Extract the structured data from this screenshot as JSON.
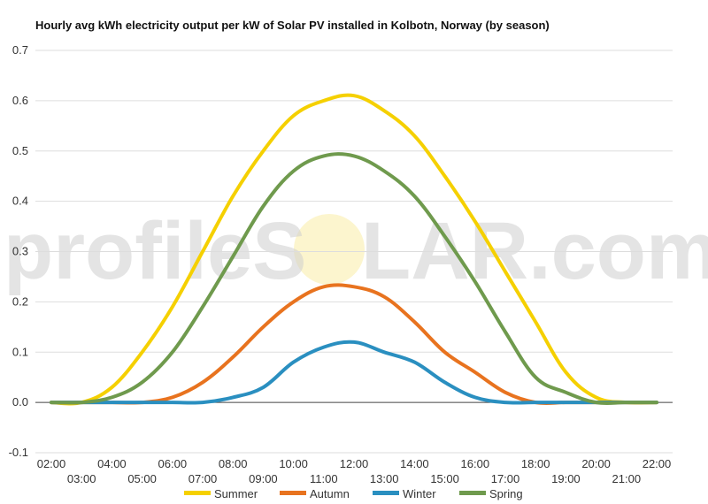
{
  "chart_data": {
    "type": "line",
    "title": "Hourly avg kWh electricity output per kW of Solar PV installed in Kolbotn, Norway (by season)",
    "xlabel": "",
    "ylabel": "",
    "ylim": [
      -0.1,
      0.7
    ],
    "yticks": [
      "0.7",
      "0.6",
      "0.5",
      "0.4",
      "0.3",
      "0.2",
      "0.1",
      "0.0",
      "-0.1"
    ],
    "grid": true,
    "legend": "bottom",
    "watermark": {
      "left": "profileS",
      "right": "LAR.com"
    },
    "categories": [
      "02:00",
      "03:00",
      "04:00",
      "05:00",
      "06:00",
      "07:00",
      "08:00",
      "09:00",
      "10:00",
      "11:00",
      "12:00",
      "13:00",
      "14:00",
      "15:00",
      "16:00",
      "17:00",
      "18:00",
      "19:00",
      "20:00",
      "21:00",
      "22:00"
    ],
    "series": [
      {
        "name": "Summer",
        "color": "#f5d000",
        "values": [
          0.0,
          0.0,
          0.03,
          0.1,
          0.19,
          0.3,
          0.41,
          0.5,
          0.57,
          0.6,
          0.61,
          0.58,
          0.53,
          0.45,
          0.36,
          0.26,
          0.16,
          0.06,
          0.01,
          0.0,
          0.0
        ]
      },
      {
        "name": "Autumn",
        "color": "#e8731f",
        "values": [
          0.0,
          0.0,
          0.0,
          0.0,
          0.01,
          0.04,
          0.09,
          0.15,
          0.2,
          0.23,
          0.23,
          0.21,
          0.16,
          0.1,
          0.06,
          0.02,
          0.0,
          0.0,
          0.0,
          0.0,
          0.0
        ]
      },
      {
        "name": "Winter",
        "color": "#2a8fc0",
        "values": [
          0.0,
          0.0,
          0.0,
          0.0,
          0.0,
          0.0,
          0.01,
          0.03,
          0.08,
          0.11,
          0.12,
          0.1,
          0.08,
          0.04,
          0.01,
          0.0,
          0.0,
          0.0,
          0.0,
          0.0,
          0.0
        ]
      },
      {
        "name": "Spring",
        "color": "#6f9a4d",
        "values": [
          0.0,
          0.0,
          0.01,
          0.04,
          0.1,
          0.19,
          0.29,
          0.39,
          0.46,
          0.49,
          0.49,
          0.46,
          0.41,
          0.33,
          0.24,
          0.14,
          0.05,
          0.02,
          0.0,
          0.0,
          0.0
        ]
      }
    ]
  }
}
